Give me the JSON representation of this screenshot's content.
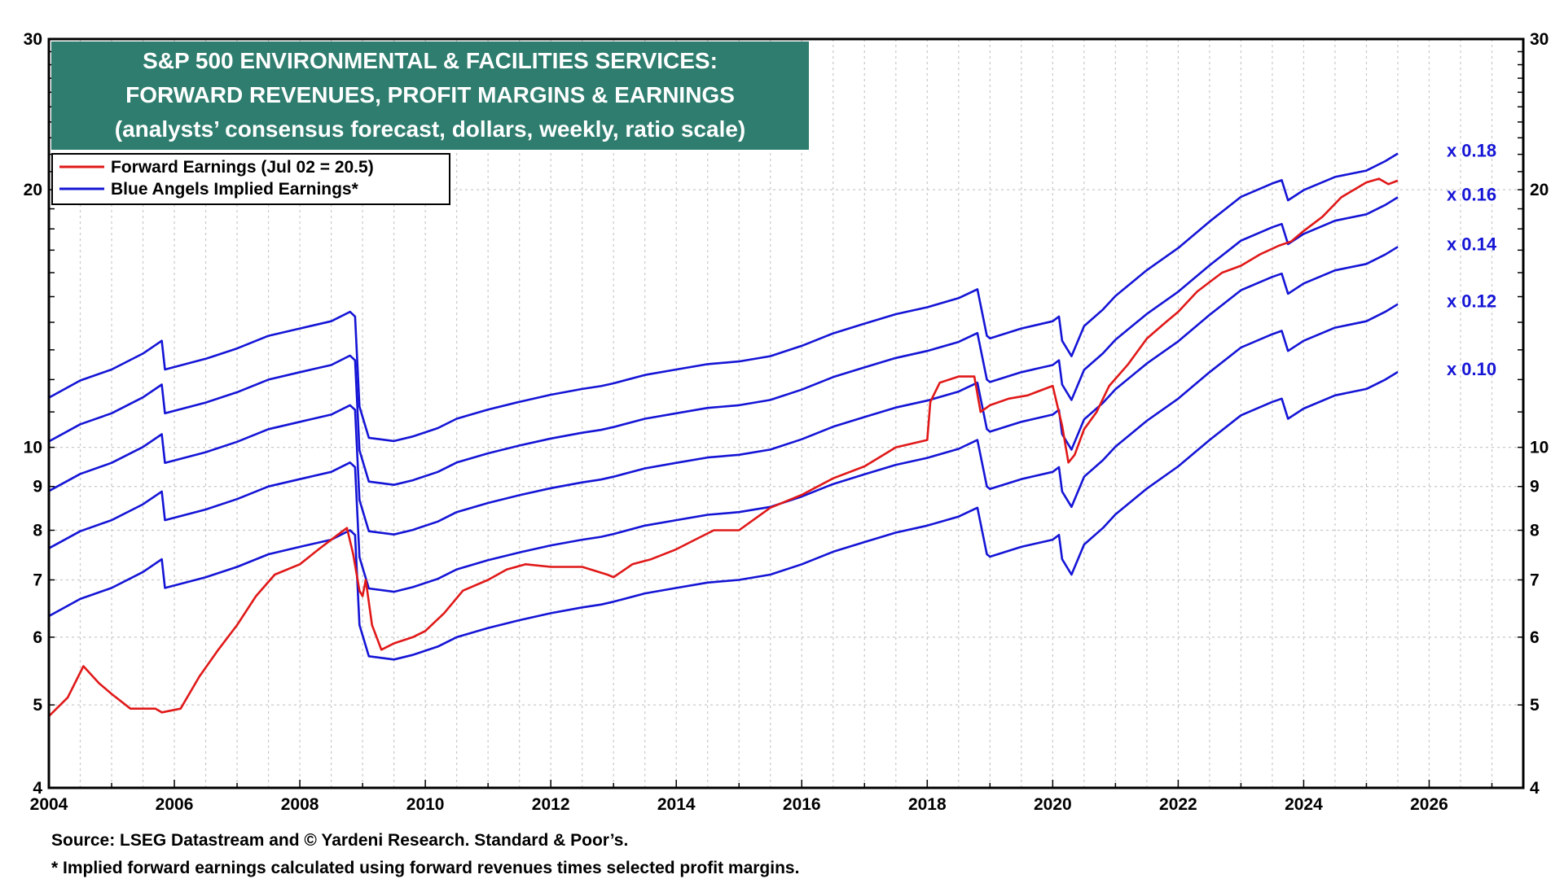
{
  "chart_data": {
    "type": "line",
    "title_lines": [
      "S&P 500 ENVIRONMENTAL & FACILITIES SERVICES:",
      "FORWARD REVENUES, PROFIT MARGINS & EARNINGS",
      "(analysts’ consensus forecast, dollars, weekly, ratio scale)"
    ],
    "y_scale": "log",
    "ylim": [
      4,
      30
    ],
    "xlim": [
      2004,
      2027.5
    ],
    "y_ticks": [
      4,
      5,
      6,
      7,
      8,
      9,
      10,
      20,
      30
    ],
    "y_tick_labels": [
      "4",
      "5",
      "6",
      "7",
      "8",
      "9",
      "10",
      "20",
      "30"
    ],
    "x_ticks": [
      2004,
      2006,
      2008,
      2010,
      2012,
      2014,
      2016,
      2018,
      2020,
      2022,
      2024,
      2026
    ],
    "x_tick_labels": [
      "2004",
      "2006",
      "2008",
      "2010",
      "2012",
      "2014",
      "2016",
      "2018",
      "2020",
      "2022",
      "2024",
      "2026"
    ],
    "grid": true,
    "legend_position": "top-left",
    "legend": [
      {
        "label": "Forward Earnings (Jul 02 = 20.5)",
        "color": "#e01818"
      },
      {
        "label": "Blue Angels Implied Earnings*",
        "color": "#1414d6"
      }
    ],
    "forward_revenue_base": {
      "x": [
        2004.0,
        2004.5,
        2005.0,
        2005.5,
        2005.8,
        2005.85,
        2006.5,
        2007.0,
        2007.5,
        2008.0,
        2008.5,
        2008.8,
        2008.88,
        2008.95,
        2009.1,
        2009.5,
        2009.8,
        2010.2,
        2010.5,
        2011.0,
        2011.5,
        2012.0,
        2012.5,
        2012.8,
        2013.0,
        2013.5,
        2014.0,
        2014.5,
        2015.0,
        2015.5,
        2016.0,
        2016.5,
        2017.0,
        2017.5,
        2018.0,
        2018.5,
        2018.8,
        2018.95,
        2019.0,
        2019.5,
        2020.0,
        2020.1,
        2020.15,
        2020.3,
        2020.5,
        2020.8,
        2021.0,
        2021.5,
        2022.0,
        2022.5,
        2023.0,
        2023.5,
        2023.65,
        2023.75,
        2024.0,
        2024.5,
        2025.0,
        2025.3,
        2025.5
      ],
      "values": [
        63.5,
        66.5,
        68.5,
        71.5,
        74.0,
        68.5,
        70.5,
        72.5,
        75.0,
        76.5,
        78.0,
        80.0,
        79.0,
        62.0,
        57.0,
        56.5,
        57.2,
        58.5,
        60.0,
        61.5,
        62.8,
        64.0,
        65.0,
        65.5,
        66.0,
        67.5,
        68.5,
        69.5,
        70.0,
        71.0,
        73.0,
        75.5,
        77.5,
        79.5,
        81.0,
        83.0,
        85.0,
        75.0,
        74.5,
        76.5,
        78.0,
        79.0,
        74.0,
        71.0,
        77.0,
        80.5,
        83.5,
        89.5,
        95.0,
        102.0,
        109.0,
        113.0,
        114.0,
        108.0,
        111.0,
        115.0,
        117.0,
        120.0,
        122.5
      ]
    },
    "series": [
      {
        "name": "Forward Earnings (Jul 02 = 20.5)",
        "color": "#e01818",
        "x": [
          2004.0,
          2004.3,
          2004.55,
          2004.8,
          2005.0,
          2005.3,
          2005.7,
          2005.8,
          2006.1,
          2006.4,
          2006.7,
          2007.0,
          2007.3,
          2007.6,
          2008.0,
          2008.3,
          2008.6,
          2008.75,
          2008.85,
          2008.95,
          2009.0,
          2009.05,
          2009.15,
          2009.3,
          2009.5,
          2009.8,
          2010.0,
          2010.3,
          2010.6,
          2011.0,
          2011.3,
          2011.6,
          2012.0,
          2012.5,
          2012.9,
          2013.0,
          2013.3,
          2013.6,
          2014.0,
          2014.3,
          2014.6,
          2015.0,
          2015.5,
          2016.0,
          2016.5,
          2017.0,
          2017.5,
          2018.0,
          2018.05,
          2018.2,
          2018.5,
          2018.75,
          2018.85,
          2019.0,
          2019.3,
          2019.6,
          2020.0,
          2020.15,
          2020.25,
          2020.35,
          2020.5,
          2020.7,
          2020.9,
          2021.2,
          2021.5,
          2021.8,
          2022.0,
          2022.3,
          2022.5,
          2022.7,
          2023.0,
          2023.3,
          2023.6,
          2023.8,
          2024.0,
          2024.3,
          2024.6,
          2025.0,
          2025.2,
          2025.35,
          2025.5
        ],
        "values": [
          4.85,
          5.1,
          5.55,
          5.3,
          5.15,
          4.95,
          4.95,
          4.9,
          4.95,
          5.4,
          5.8,
          6.2,
          6.7,
          7.1,
          7.3,
          7.6,
          7.9,
          8.05,
          7.5,
          6.8,
          6.7,
          7.0,
          6.2,
          5.8,
          5.9,
          6.0,
          6.1,
          6.4,
          6.8,
          7.0,
          7.2,
          7.3,
          7.25,
          7.25,
          7.1,
          7.05,
          7.3,
          7.4,
          7.6,
          7.8,
          8.0,
          8.0,
          8.5,
          8.8,
          9.2,
          9.5,
          10.0,
          10.2,
          11.3,
          11.9,
          12.1,
          12.1,
          11.0,
          11.2,
          11.4,
          11.5,
          11.8,
          10.6,
          9.6,
          9.8,
          10.5,
          11.0,
          11.8,
          12.5,
          13.4,
          14.0,
          14.4,
          15.2,
          15.6,
          16.0,
          16.3,
          16.8,
          17.2,
          17.4,
          17.9,
          18.6,
          19.6,
          20.4,
          20.6,
          20.3,
          20.5
        ]
      },
      {
        "name": "x 0.18",
        "color": "#1414d6",
        "margin": 0.18
      },
      {
        "name": "x 0.16",
        "color": "#1414d6",
        "margin": 0.16
      },
      {
        "name": "x 0.14",
        "color": "#1414d6",
        "margin": 0.14
      },
      {
        "name": "x 0.12",
        "color": "#1414d6",
        "margin": 0.12
      },
      {
        "name": "x 0.10",
        "color": "#1414d6",
        "margin": 0.1
      }
    ],
    "line_labels": [
      "x 0.18",
      "x 0.16",
      "x 0.14",
      "x 0.12",
      "x 0.10"
    ],
    "footnotes": [
      "Source: LSEG Datastream and © Yardeni Research. Standard & Poor’s.",
      "* Implied forward earnings calculated using forward revenues times selected profit margins."
    ]
  }
}
